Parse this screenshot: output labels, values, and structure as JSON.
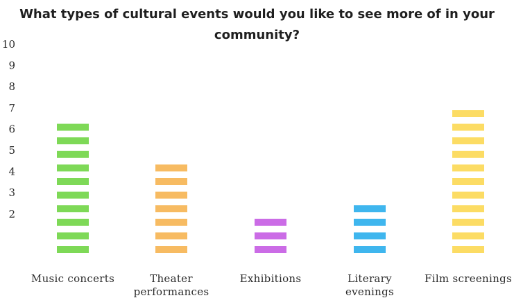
{
  "chart_data": {
    "type": "bar",
    "title": "What types of cultural events would you like to see more of in your community?",
    "xlabel": "",
    "ylabel": "",
    "ylim": [
      0,
      10
    ],
    "y_ticks": [
      "2",
      "3",
      "4",
      "5",
      "6",
      "7",
      "8",
      "9",
      "10"
    ],
    "y_tick_values": [
      2,
      3,
      4,
      5,
      6,
      7,
      8,
      9,
      10
    ],
    "categories": [
      "Music concerts",
      "Theater performances",
      "Exhibitions",
      "Literary evenings",
      "Film screenings"
    ],
    "category_lines": [
      [
        "Music concerts"
      ],
      [
        "Theater",
        "performances"
      ],
      [
        "Exhibitions"
      ],
      [
        "Literary",
        "evenings"
      ],
      [
        "Film screenings"
      ]
    ],
    "values": [
      6.5,
      4.6,
      2.1,
      2.7,
      7.1
    ],
    "colors": [
      "#7ed957",
      "#f7bb62",
      "#cb6ce6",
      "#3fb6ee",
      "#fcdc64"
    ],
    "grid": false,
    "legend": "none",
    "style": "stacked-dash-marks"
  }
}
